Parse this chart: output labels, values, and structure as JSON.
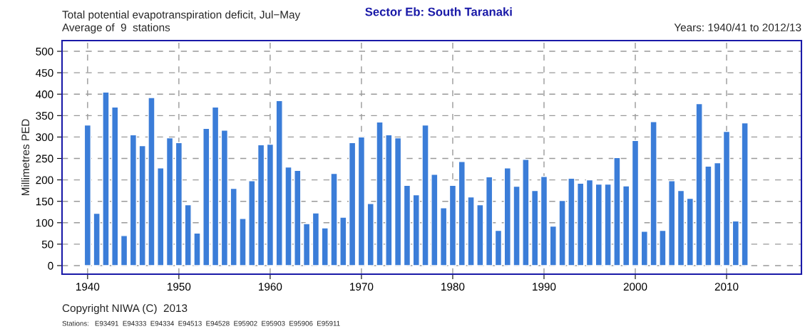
{
  "chart_data": {
    "type": "bar",
    "title": "Sector Eb: South Taranaki",
    "ylabel": "Millimetres PED",
    "annotations": [
      "Total potential evapotranspiration deficit, Jul−May",
      "Average of  9  stations",
      "Years: 1940/41 to 2012/13",
      "Copyright NIWA (C)  2013",
      "Stations:   E93491  E94333  E94334  E94513  E94528  E95902  E95903  E95906  E95911"
    ],
    "x": [
      1940,
      1941,
      1942,
      1943,
      1944,
      1945,
      1946,
      1947,
      1948,
      1949,
      1950,
      1951,
      1952,
      1953,
      1954,
      1955,
      1956,
      1957,
      1958,
      1959,
      1960,
      1961,
      1962,
      1963,
      1964,
      1965,
      1966,
      1967,
      1968,
      1969,
      1970,
      1971,
      1972,
      1973,
      1974,
      1975,
      1976,
      1977,
      1978,
      1979,
      1980,
      1981,
      1982,
      1983,
      1984,
      1985,
      1986,
      1987,
      1988,
      1989,
      1990,
      1991,
      1992,
      1993,
      1994,
      1995,
      1996,
      1997,
      1998,
      1999,
      2000,
      2001,
      2002,
      2003,
      2004,
      2005,
      2006,
      2007,
      2008,
      2009,
      2010,
      2011,
      2012
    ],
    "values": [
      328,
      122,
      405,
      370,
      70,
      305,
      280,
      392,
      228,
      298,
      287,
      142,
      76,
      320,
      370,
      316,
      180,
      110,
      198,
      282,
      283,
      385,
      230,
      222,
      98,
      123,
      88,
      215,
      113,
      287,
      300,
      145,
      335,
      305,
      298,
      187,
      165,
      328,
      213,
      135,
      187,
      243,
      160,
      142,
      207,
      82,
      228,
      185,
      248,
      175,
      208,
      92,
      152,
      204,
      192,
      200,
      190,
      190,
      252,
      186,
      292,
      80,
      336,
      82,
      198,
      175,
      157,
      378,
      232,
      240,
      313,
      104,
      333
    ],
    "color": "#3b7dd8",
    "xlim": [
      1937.2,
      2018.2
    ],
    "xticks": [
      1940,
      1950,
      1960,
      1970,
      1980,
      1990,
      2000,
      2010
    ],
    "ylim": [
      -20,
      525
    ],
    "yticks": [
      0,
      50,
      100,
      150,
      200,
      250,
      300,
      350,
      400,
      450,
      500
    ],
    "grid": true
  }
}
